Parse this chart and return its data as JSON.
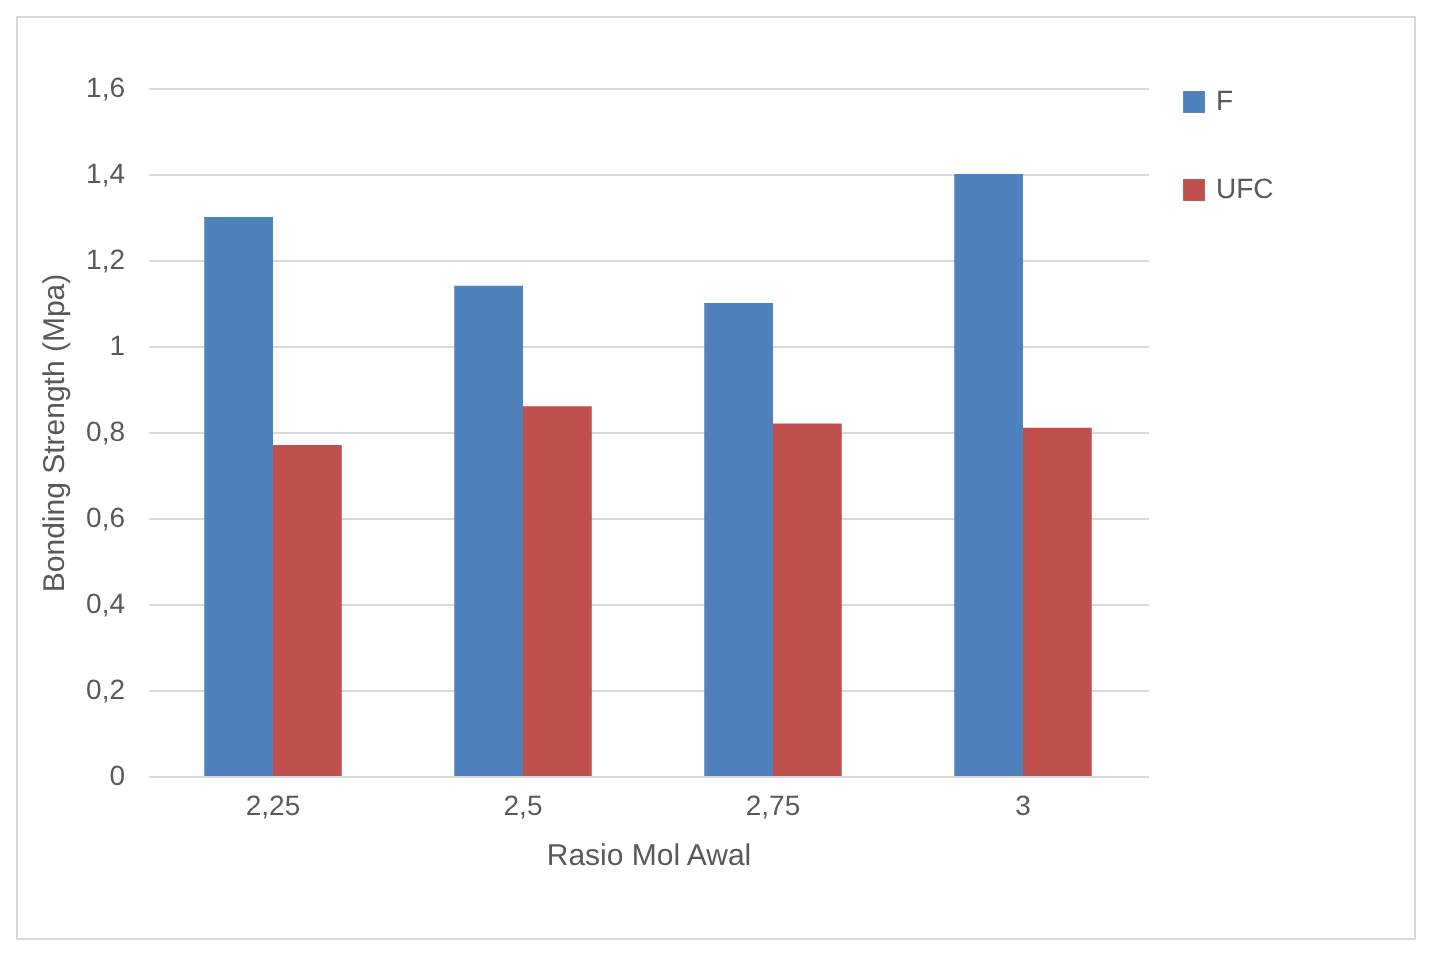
{
  "chart_data": {
    "type": "bar",
    "xlabel": "Rasio Mol Awal",
    "ylabel": "Bonding Strength (Mpa)",
    "categories": [
      "2,25",
      "2,5",
      "2,75",
      "3"
    ],
    "series": [
      {
        "name": "F",
        "color": "#4f81bd",
        "values": [
          1.3,
          1.14,
          1.1,
          1.4
        ]
      },
      {
        "name": "UFC",
        "color": "#c0504d",
        "values": [
          0.77,
          0.86,
          0.82,
          0.81
        ]
      }
    ],
    "ylim": [
      0,
      1.6
    ],
    "yticks": [
      0,
      {
        "value": 0.2,
        "label": "0,2"
      },
      {
        "value": 0.4,
        "label": "0,4"
      },
      {
        "value": 0.6,
        "label": "0,6"
      },
      {
        "value": 0.8,
        "label": "0,8"
      },
      1,
      {
        "value": 1.2,
        "label": "1,2"
      },
      {
        "value": 1.4,
        "label": "1,4"
      },
      {
        "value": 1.6,
        "label": "1,6"
      }
    ],
    "grid": "y",
    "legend": "right"
  }
}
